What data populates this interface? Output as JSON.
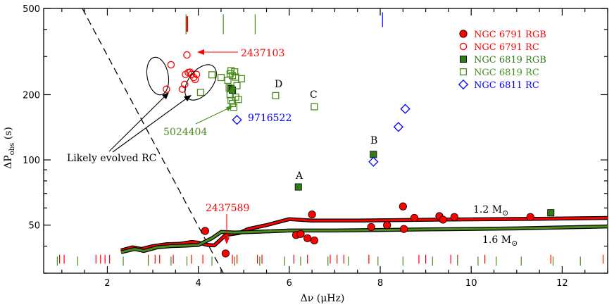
{
  "chart_data": {
    "type": "scatter",
    "xlabel": "Δν (μHz)",
    "ylabel": "ΔP",
    "ylabel_sub": "obs",
    "ylabel_unit": " (s)",
    "xlim": [
      0.6,
      13.0
    ],
    "ylim": [
      30,
      500
    ],
    "yscale": "log",
    "x_ticks": [
      2,
      4,
      6,
      8,
      10,
      12
    ],
    "y_ticks": [
      50,
      100,
      200,
      500
    ],
    "legend_position": "top-right",
    "colors": {
      "ngc6791": "#ff0000",
      "ngc6819": "#4a8c1c",
      "ngc6819_fill": "#2e7d16",
      "ngc6811": "#0000ff",
      "track_outer": "#000000",
      "track_12": "#ff0000",
      "track_16": "#4a8c1c"
    },
    "series": [
      {
        "name": "NGC 6791 RGB",
        "marker": "filled-circle",
        "color": "#ff0000",
        "points": [
          [
            4.15,
            47
          ],
          [
            4.6,
            37
          ],
          [
            6.15,
            45
          ],
          [
            6.25,
            45.5
          ],
          [
            6.4,
            43.5
          ],
          [
            6.5,
            56
          ],
          [
            6.55,
            42.5
          ],
          [
            7.8,
            49
          ],
          [
            8.15,
            50
          ],
          [
            8.5,
            61
          ],
          [
            8.52,
            48
          ],
          [
            8.75,
            54
          ],
          [
            9.3,
            55
          ],
          [
            9.38,
            53
          ],
          [
            9.63,
            54.5
          ],
          [
            11.3,
            54.5
          ]
        ]
      },
      {
        "name": "NGC 6791 RC",
        "marker": "open-circle",
        "color": "#ff0000",
        "points": [
          [
            3.3,
            212
          ],
          [
            3.4,
            275
          ],
          [
            3.75,
            305
          ],
          [
            3.65,
            212
          ],
          [
            3.7,
            223
          ],
          [
            3.72,
            248
          ],
          [
            3.78,
            253
          ],
          [
            3.82,
            254
          ],
          [
            3.85,
            248
          ],
          [
            3.9,
            240
          ],
          [
            3.93,
            235
          ],
          [
            3.96,
            248
          ]
        ]
      },
      {
        "name": "NGC 6819 RGB",
        "marker": "filled-square",
        "color": "#2e7d16",
        "points": [
          [
            6.2,
            75
          ],
          [
            7.85,
            106
          ],
          [
            11.75,
            57
          ],
          [
            4.72,
            213
          ],
          [
            4.75,
            210
          ]
        ]
      },
      {
        "name": "NGC 6819 RC",
        "marker": "open-square",
        "color": "#4a8c1c",
        "points": [
          [
            4.05,
            205
          ],
          [
            4.3,
            247
          ],
          [
            4.5,
            240
          ],
          [
            4.65,
            233
          ],
          [
            4.7,
            250
          ],
          [
            4.72,
            258
          ],
          [
            4.75,
            245
          ],
          [
            4.8,
            255
          ],
          [
            4.82,
            241
          ],
          [
            4.85,
            220
          ],
          [
            4.95,
            237
          ],
          [
            4.68,
            215
          ],
          [
            4.7,
            200
          ],
          [
            4.72,
            188
          ],
          [
            4.75,
            182
          ],
          [
            4.78,
            175
          ],
          [
            4.82,
            195
          ],
          [
            4.88,
            190
          ],
          [
            5.7,
            198
          ],
          [
            6.55,
            176
          ]
        ]
      },
      {
        "name": "NGC 6811 RC",
        "marker": "open-diamond",
        "color": "#0000ff",
        "points": [
          [
            4.85,
            153
          ],
          [
            7.85,
            98
          ],
          [
            8.4,
            142
          ],
          [
            8.55,
            172
          ]
        ]
      }
    ],
    "tracks": [
      {
        "name": "1.2 M☉",
        "color": "#ff0000",
        "points": [
          [
            2.3,
            38.2
          ],
          [
            2.55,
            39.5
          ],
          [
            2.75,
            38.8
          ],
          [
            3,
            40
          ],
          [
            3.3,
            40.8
          ],
          [
            3.6,
            41
          ],
          [
            3.85,
            41.8
          ],
          [
            4.0,
            41.5
          ],
          [
            4.2,
            40.5
          ],
          [
            4.35,
            40.3
          ],
          [
            4.6,
            45
          ],
          [
            4.9,
            46
          ],
          [
            5.1,
            48
          ],
          [
            5.5,
            50
          ],
          [
            6,
            53.3
          ],
          [
            6.5,
            52.5
          ],
          [
            7.5,
            52.5
          ],
          [
            8.5,
            52.8
          ],
          [
            10,
            53.2
          ],
          [
            11.5,
            53.5
          ],
          [
            13,
            54
          ]
        ]
      },
      {
        "name": "1.6 M☉",
        "color": "#4a8c1c",
        "points": [
          [
            2.3,
            37.5
          ],
          [
            2.6,
            38.8
          ],
          [
            2.8,
            38
          ],
          [
            3.1,
            39.5
          ],
          [
            3.4,
            40
          ],
          [
            3.7,
            40.2
          ],
          [
            4.0,
            40.5
          ],
          [
            4.3,
            43.5
          ],
          [
            4.5,
            46.5
          ],
          [
            4.8,
            46.2
          ],
          [
            5.2,
            46.5
          ],
          [
            6,
            47.2
          ],
          [
            7,
            47.2
          ],
          [
            8,
            47.5
          ],
          [
            9,
            47.8
          ],
          [
            10,
            48
          ],
          [
            11,
            48.3
          ],
          [
            12,
            48.8
          ],
          [
            13,
            49.3
          ]
        ]
      }
    ],
    "dashed_line": [
      [
        1.45,
        500
      ],
      [
        4.55,
        30
      ]
    ],
    "tick_marks": {
      "top": [
        {
          "x": 3.75,
          "color": "#ff0000",
          "weight": "bold",
          "y": [
            390,
            460
          ]
        },
        {
          "x": 3.73,
          "color": "#4a8c1c",
          "y": [
            380,
            470
          ]
        },
        {
          "x": 4.55,
          "color": "#4a8c1c",
          "y": [
            380,
            470
          ]
        },
        {
          "x": 5.25,
          "color": "#4a8c1c",
          "y": [
            380,
            470
          ]
        },
        {
          "x": 8.05,
          "color": "#0000ff",
          "y": [
            410,
            480
          ]
        }
      ],
      "bottom_red": [
        0.95,
        1.05,
        1.75,
        1.85,
        1.95,
        2.05,
        2.9,
        3.05,
        3.15,
        3.45,
        3.85,
        4.1,
        4.75,
        4.85,
        5.3,
        5.4,
        6.1,
        6.4,
        6.9,
        7.05,
        7.2,
        7.75,
        8.85,
        9.0,
        9.55,
        9.7,
        10.3,
        11.75,
        12.9
      ],
      "bottom_green": [
        0.9,
        1.35,
        2.35,
        2.9,
        3.4,
        3.75,
        4.3,
        4.8,
        5.35,
        5.9,
        6.25,
        6.85,
        7.3,
        7.95,
        8.5,
        9.15,
        9.7,
        10.15,
        10.55,
        11.1,
        11.8,
        12.4
      ]
    },
    "annotations": {
      "id_2437103": "2437103",
      "id_5024404": "5024404",
      "id_9716522": "9716522",
      "id_2437589": "2437589",
      "likely_evolved": "Likely evolved RC",
      "label_A": "A",
      "label_B": "B",
      "label_C": "C",
      "label_D": "D",
      "mass_12": "1.2 M",
      "mass_16": "1.6 M",
      "sun_symbol": "⊙"
    },
    "legend": [
      {
        "label": "NGC 6791 RGB",
        "marker": "filled-circle",
        "color": "#ff0000"
      },
      {
        "label": "NGC 6791 RC",
        "marker": "open-circle",
        "color": "#ff0000"
      },
      {
        "label": "NGC 6819 RGB",
        "marker": "filled-square",
        "color": "#2e7d16"
      },
      {
        "label": "NGC 6819 RC",
        "marker": "open-square",
        "color": "#4a8c1c"
      },
      {
        "label": "NGC 6811 RC",
        "marker": "open-diamond",
        "color": "#0000ff"
      }
    ]
  }
}
